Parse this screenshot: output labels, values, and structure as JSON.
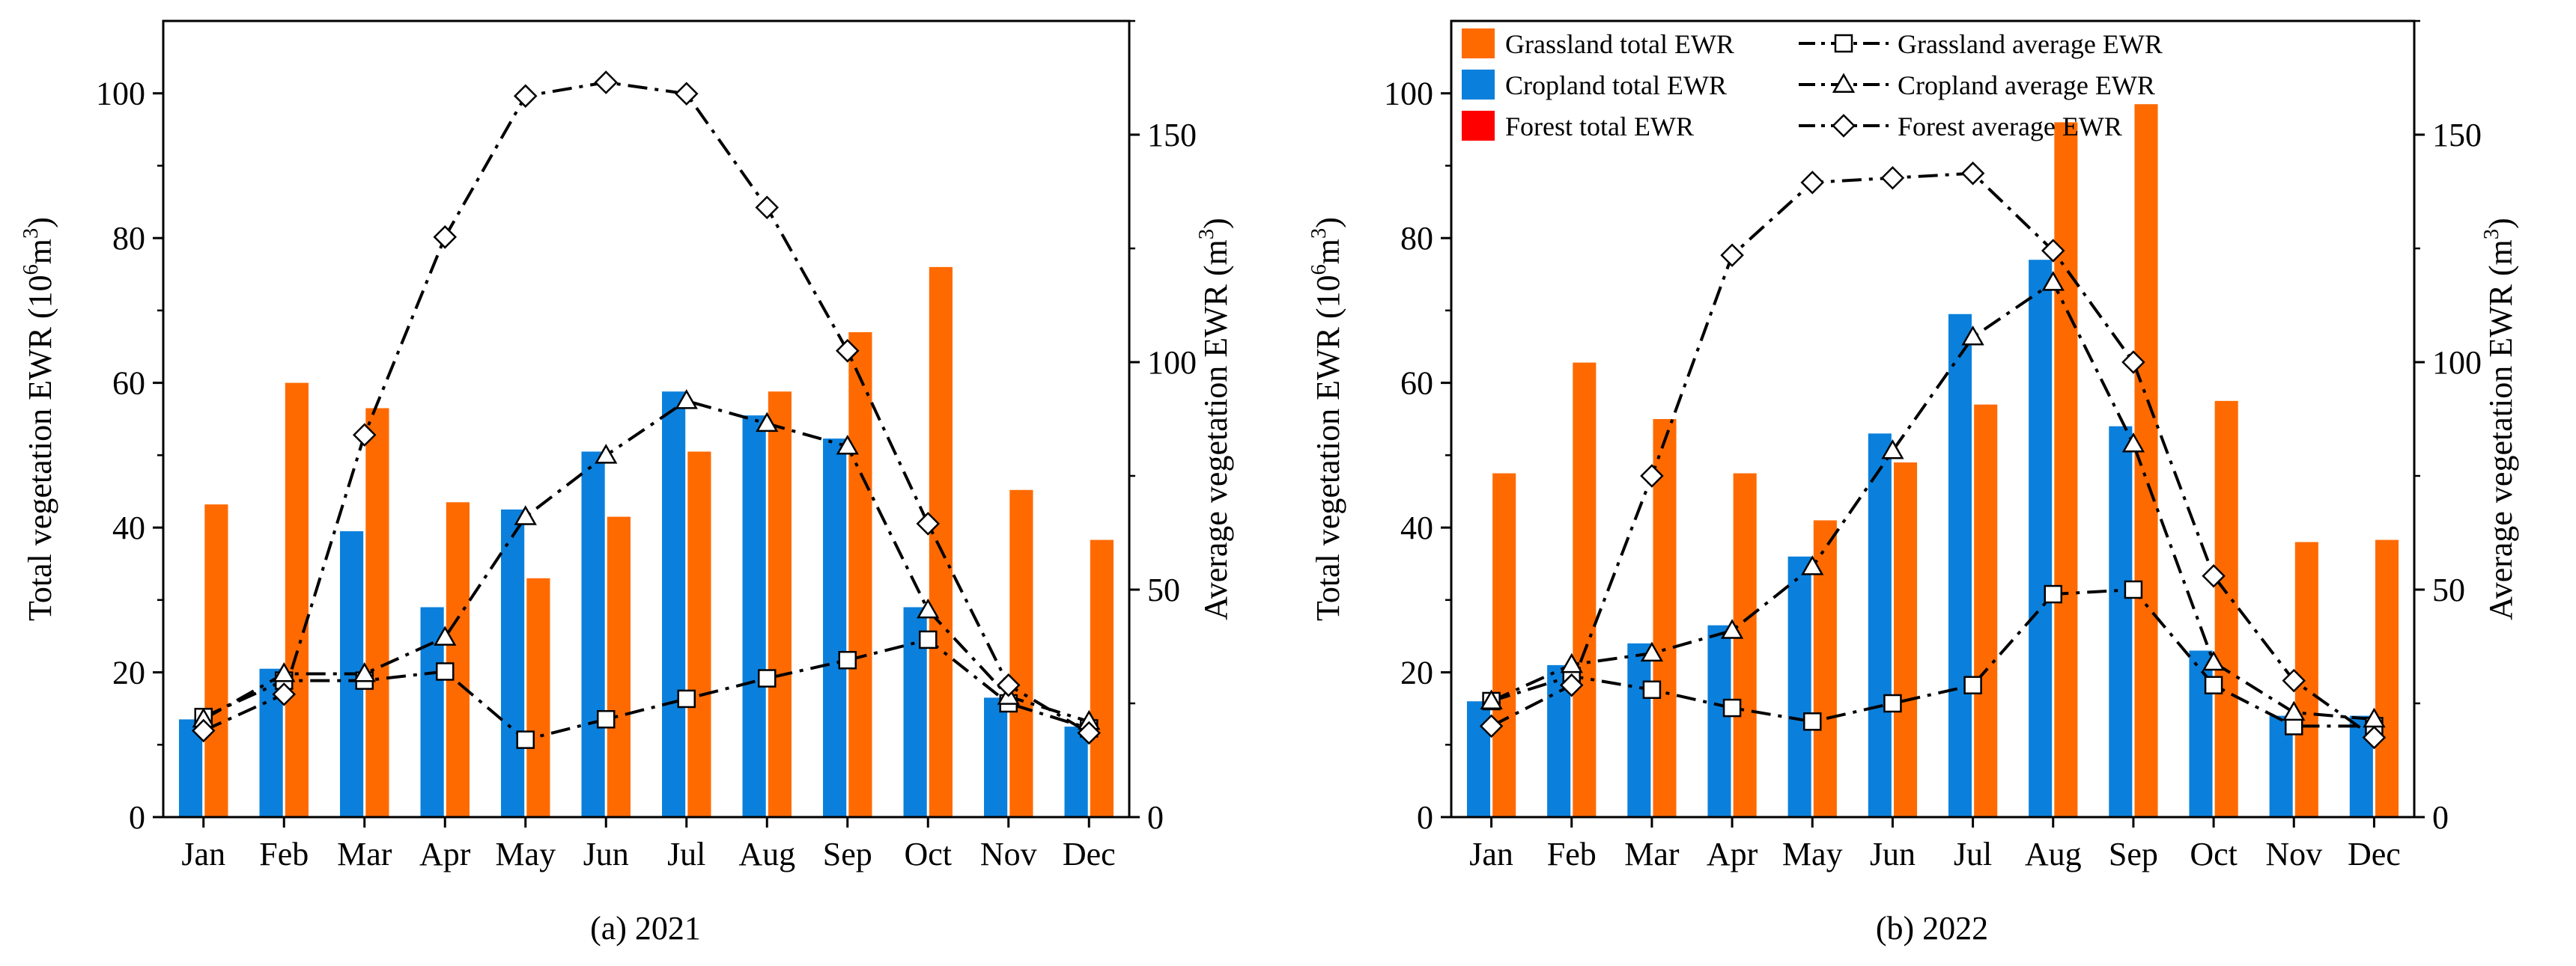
{
  "chart_data": [
    {
      "type": "bar",
      "panel": "a",
      "caption": "(a) 2021",
      "categories": [
        "Jan",
        "Feb",
        "Mar",
        "Apr",
        "May",
        "Jun",
        "Jul",
        "Aug",
        "Sep",
        "Oct",
        "Nov",
        "Dec"
      ],
      "ylabel_left_prefix": "Total vegetation EWR (10",
      "ylabel_left_sup": "6",
      "ylabel_left_suffix": "m",
      "ylabel_left_sup2": "3",
      "ylabel_left_close": ")",
      "ylabel_right_prefix": "Average vegetation EWR (m",
      "ylabel_right_sup": "3",
      "ylabel_right_close": ")",
      "ylim_left": [
        0,
        110
      ],
      "yticks_left": [
        0,
        20,
        40,
        60,
        80,
        100
      ],
      "ylim_right": [
        0,
        175
      ],
      "yticks_right": [
        0,
        50,
        100,
        150
      ],
      "bar_series": [
        {
          "name": "Cropland total EWR",
          "color": "#0a80dc",
          "values": [
            13.5,
            20.5,
            39.5,
            29,
            42.5,
            50.5,
            58.8,
            55.5,
            52.3,
            29,
            16.5,
            12.5
          ]
        },
        {
          "name": "Grassland total EWR",
          "color": "#ff6a00",
          "values": [
            43.2,
            60,
            56.5,
            43.5,
            33,
            41.5,
            50.5,
            58.8,
            67,
            76,
            45.2,
            38.3
          ]
        }
      ],
      "line_series": [
        {
          "name": "Grassland average EWR",
          "marker": "square",
          "values": [
            22,
            30,
            30,
            32,
            17,
            21.5,
            26,
            30.5,
            34.5,
            39,
            25,
            19.5
          ]
        },
        {
          "name": "Cropland average EWR",
          "marker": "triangle",
          "values": [
            21.5,
            31.5,
            31.5,
            39.5,
            66,
            79.5,
            91.5,
            86.5,
            81.5,
            45.5,
            26.5,
            21
          ]
        },
        {
          "name": "Forest average EWR",
          "marker": "diamond",
          "values": [
            19,
            27,
            84,
            127.5,
            158.5,
            161.5,
            159,
            134,
            102.5,
            64.5,
            29,
            18.5
          ]
        }
      ]
    },
    {
      "type": "bar",
      "panel": "b",
      "caption": "(b) 2022",
      "categories": [
        "Jan",
        "Feb",
        "Mar",
        "Apr",
        "May",
        "Jun",
        "Jul",
        "Aug",
        "Sep",
        "Oct",
        "Nov",
        "Dec"
      ],
      "ylabel_left_prefix": "Total vegetation EWR (10",
      "ylabel_left_sup": "6",
      "ylabel_left_suffix": "m",
      "ylabel_left_sup2": "3",
      "ylabel_left_close": ")",
      "ylabel_right_prefix": "Average vegetation EWR (m",
      "ylabel_right_sup": "3",
      "ylabel_right_close": ")",
      "ylim_left": [
        0,
        110
      ],
      "yticks_left": [
        0,
        20,
        40,
        60,
        80,
        100
      ],
      "ylim_right": [
        0,
        175
      ],
      "yticks_right": [
        0,
        50,
        100,
        150
      ],
      "legend": {
        "bars": [
          {
            "label": "Grassland total EWR",
            "color": "#ff6a00"
          },
          {
            "label": "Cropland total EWR",
            "color": "#0a80dc"
          },
          {
            "label": "Forest total EWR",
            "color": "#ff0000"
          }
        ],
        "lines": [
          {
            "label": "Grassland average EWR",
            "marker": "square"
          },
          {
            "label": "Cropland average EWR",
            "marker": "triangle"
          },
          {
            "label": "Forest average EWR",
            "marker": "diamond"
          }
        ]
      },
      "bar_series": [
        {
          "name": "Cropland total EWR",
          "color": "#0a80dc",
          "values": [
            16,
            21,
            24,
            26.5,
            36,
            53,
            69.5,
            77,
            54,
            23,
            14,
            14
          ]
        },
        {
          "name": "Grassland total EWR",
          "color": "#ff6a00",
          "values": [
            47.5,
            62.8,
            55,
            47.5,
            41,
            49,
            57,
            96,
            98.5,
            57.5,
            38,
            38.3
          ]
        }
      ],
      "line_series": [
        {
          "name": "Grassland average EWR",
          "marker": "square",
          "values": [
            25.5,
            31,
            28,
            24,
            21,
            25,
            29,
            49,
            50,
            29,
            20,
            20
          ]
        },
        {
          "name": "Cropland average EWR",
          "marker": "triangle",
          "values": [
            25.5,
            33.5,
            36,
            41,
            55,
            80.5,
            105.5,
            117.5,
            82,
            34,
            23,
            21.5
          ]
        },
        {
          "name": "Forest average EWR",
          "marker": "diamond",
          "values": [
            20,
            29,
            75,
            123.5,
            139.5,
            140.5,
            141.5,
            124.5,
            100,
            53,
            30,
            17.5
          ]
        }
      ]
    }
  ]
}
